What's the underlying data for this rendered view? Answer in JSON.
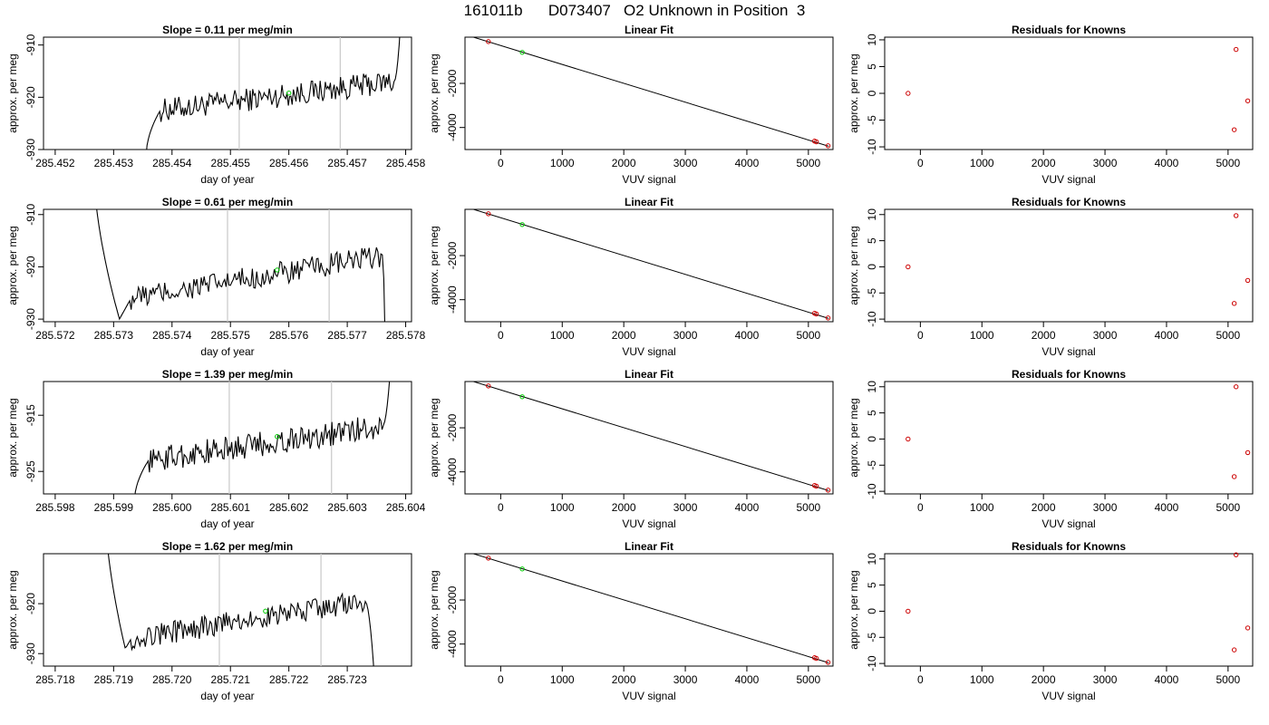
{
  "title": "161011b      D073407   O2 Unknown in Position  3",
  "colors": {
    "line": "#000000",
    "known_point": "#cc0000",
    "unknown_point": "#00cc00",
    "vline": "#cccccc",
    "frame": "#000000"
  },
  "chart_data": [
    {
      "type": "line",
      "title": "Slope =  0.11  per meg/min",
      "xlabel": "day of year",
      "ylabel": "approx. per meg",
      "xlim": [
        285.4518,
        285.4581
      ],
      "ylim": [
        -930,
        -908.5
      ],
      "xticks": [
        285.452,
        285.453,
        285.454,
        285.455,
        285.456,
        285.457,
        285.458
      ],
      "xtick_labels": [
        "285.452",
        "285.453",
        "285.454",
        "285.455",
        "285.456",
        "285.457",
        "285.458"
      ],
      "yticks": [
        -930,
        -920,
        -910
      ],
      "ytick_labels": [
        "-930",
        "-920",
        "-910"
      ],
      "vlines": [
        285.45515,
        285.45688
      ],
      "series_x_range": [
        285.45355,
        285.45791
      ],
      "series_start": -932,
      "series_end": -906,
      "plateau_range": [
        285.4538,
        285.4578
      ],
      "plateau_from": -922.5,
      "plateau_to": -917,
      "unknown_point": {
        "x": 285.456,
        "y": -919.2
      }
    },
    {
      "type": "scatter",
      "title": "Linear Fit",
      "xlabel": "VUV signal",
      "ylabel": "approx. per meg",
      "xlim": [
        -580,
        5400
      ],
      "ylim": [
        -5000,
        100
      ],
      "xticks": [
        0,
        1000,
        2000,
        3000,
        4000,
        5000
      ],
      "xtick_labels": [
        "0",
        "1000",
        "2000",
        "3000",
        "4000",
        "5000"
      ],
      "yticks": [
        -4000,
        -2000
      ],
      "ytick_labels": [
        "-4000",
        "-2000"
      ],
      "fit_line": {
        "x": [
          -560,
          5330
        ],
        "y": [
          200,
          -4850
        ]
      },
      "known_points": [
        {
          "x": -200,
          "y": -100
        },
        {
          "x": 5100,
          "y": -4620
        },
        {
          "x": 5130,
          "y": -4650
        },
        {
          "x": 5320,
          "y": -4830
        }
      ],
      "unknown_points": [
        {
          "x": 350,
          "y": -590
        }
      ]
    },
    {
      "type": "scatter",
      "title": "Residuals for Knowns",
      "xlabel": "VUV signal",
      "ylabel": "approx. per meg",
      "xlim": [
        -580,
        5400
      ],
      "ylim": [
        -10.5,
        10.5
      ],
      "xticks": [
        0,
        1000,
        2000,
        3000,
        4000,
        5000
      ],
      "xtick_labels": [
        "0",
        "1000",
        "2000",
        "3000",
        "4000",
        "5000"
      ],
      "yticks": [
        -10,
        -5,
        0,
        5,
        10
      ],
      "ytick_labels": [
        "-10",
        "-5",
        "0",
        "5",
        "10"
      ],
      "known_points": [
        {
          "x": -200,
          "y": 0
        },
        {
          "x": 5130,
          "y": 8.2
        },
        {
          "x": 5100,
          "y": -6.8
        },
        {
          "x": 5320,
          "y": -1.4
        }
      ]
    },
    {
      "type": "line",
      "title": "Slope =  0.61  per meg/min",
      "xlabel": "day of year",
      "ylabel": "approx. per meg",
      "xlim": [
        285.5718,
        285.5781
      ],
      "ylim": [
        -930.5,
        -909
      ],
      "xticks": [
        285.572,
        285.573,
        285.574,
        285.575,
        285.576,
        285.577,
        285.578
      ],
      "xtick_labels": [
        "285.572",
        "285.573",
        "285.574",
        "285.575",
        "285.576",
        "285.577",
        "285.578"
      ],
      "yticks": [
        -930,
        -920,
        -910
      ],
      "ytick_labels": [
        "-930",
        "-920",
        "-910"
      ],
      "vlines": [
        285.57495,
        285.57669
      ],
      "series_x_range": [
        285.57265,
        285.57765
      ],
      "series_start": -900,
      "series_end": -935,
      "valley_x": 285.5731,
      "valley_y": -930,
      "plateau_range": [
        285.5733,
        285.5776
      ],
      "plateau_from": -926,
      "plateau_to": -918,
      "unknown_point": {
        "x": 285.5758,
        "y": -920.6
      }
    },
    {
      "type": "scatter",
      "title": "Linear Fit",
      "xlabel": "VUV signal",
      "ylabel": "approx. per meg",
      "xlim": [
        -580,
        5400
      ],
      "ylim": [
        -5000,
        100
      ],
      "xticks": [
        0,
        1000,
        2000,
        3000,
        4000,
        5000
      ],
      "xtick_labels": [
        "0",
        "1000",
        "2000",
        "3000",
        "4000",
        "5000"
      ],
      "yticks": [
        -4000,
        -2000
      ],
      "ytick_labels": [
        "-4000",
        "-2000"
      ],
      "fit_line": {
        "x": [
          -560,
          5330
        ],
        "y": [
          200,
          -4850
        ]
      },
      "known_points": [
        {
          "x": -200,
          "y": -100
        },
        {
          "x": 5100,
          "y": -4620
        },
        {
          "x": 5130,
          "y": -4650
        },
        {
          "x": 5320,
          "y": -4830
        }
      ],
      "unknown_points": [
        {
          "x": 350,
          "y": -590
        }
      ]
    },
    {
      "type": "scatter",
      "title": "Residuals for Knowns",
      "xlabel": "VUV signal",
      "ylabel": "approx. per meg",
      "xlim": [
        -580,
        5400
      ],
      "ylim": [
        -10.5,
        11
      ],
      "xticks": [
        0,
        1000,
        2000,
        3000,
        4000,
        5000
      ],
      "xtick_labels": [
        "0",
        "1000",
        "2000",
        "3000",
        "4000",
        "5000"
      ],
      "yticks": [
        -10,
        -5,
        0,
        5,
        10
      ],
      "ytick_labels": [
        "-10",
        "-5",
        "0",
        "5",
        "10"
      ],
      "known_points": [
        {
          "x": -200,
          "y": 0
        },
        {
          "x": 5130,
          "y": 9.8
        },
        {
          "x": 5100,
          "y": -7.0
        },
        {
          "x": 5320,
          "y": -2.6
        }
      ]
    },
    {
      "type": "line",
      "title": "Slope =  1.39  per meg/min",
      "xlabel": "day of year",
      "ylabel": "approx. per meg",
      "xlim": [
        285.5978,
        285.6041
      ],
      "ylim": [
        -929,
        -909
      ],
      "xticks": [
        285.598,
        285.599,
        285.6,
        285.601,
        285.602,
        285.603,
        285.604
      ],
      "xtick_labels": [
        "285.598",
        "285.599",
        "285.600",
        "285.601",
        "285.602",
        "285.603",
        "285.604"
      ],
      "yticks": [
        -925,
        -915
      ],
      "ytick_labels": [
        "-925",
        "-915"
      ],
      "vlines": [
        285.60098,
        285.60273
      ],
      "series_x_range": [
        285.59935,
        285.60375
      ],
      "series_start": -931,
      "series_end": -905,
      "plateau_range": [
        285.5996,
        285.6036
      ],
      "plateau_from": -923,
      "plateau_to": -917,
      "unknown_point": {
        "x": 285.6018,
        "y": -918.8
      }
    },
    {
      "type": "scatter",
      "title": "Linear Fit",
      "xlabel": "VUV signal",
      "ylabel": "approx. per meg",
      "xlim": [
        -580,
        5400
      ],
      "ylim": [
        -5000,
        100
      ],
      "xticks": [
        0,
        1000,
        2000,
        3000,
        4000,
        5000
      ],
      "xtick_labels": [
        "0",
        "1000",
        "2000",
        "3000",
        "4000",
        "5000"
      ],
      "yticks": [
        -4000,
        -2000
      ],
      "ytick_labels": [
        "-4000",
        "-2000"
      ],
      "fit_line": {
        "x": [
          -560,
          5330
        ],
        "y": [
          200,
          -4850
        ]
      },
      "known_points": [
        {
          "x": -200,
          "y": -100
        },
        {
          "x": 5100,
          "y": -4620
        },
        {
          "x": 5130,
          "y": -4650
        },
        {
          "x": 5320,
          "y": -4830
        }
      ],
      "unknown_points": [
        {
          "x": 350,
          "y": -590
        }
      ]
    },
    {
      "type": "scatter",
      "title": "Residuals for Knowns",
      "xlabel": "VUV signal",
      "ylabel": "approx. per meg",
      "xlim": [
        -580,
        5400
      ],
      "ylim": [
        -10.5,
        11
      ],
      "xticks": [
        0,
        1000,
        2000,
        3000,
        4000,
        5000
      ],
      "xtick_labels": [
        "0",
        "1000",
        "2000",
        "3000",
        "4000",
        "5000"
      ],
      "yticks": [
        -10,
        -5,
        0,
        5,
        10
      ],
      "ytick_labels": [
        "-10",
        "-5",
        "0",
        "5",
        "10"
      ],
      "known_points": [
        {
          "x": -200,
          "y": 0
        },
        {
          "x": 5130,
          "y": 10.0
        },
        {
          "x": 5100,
          "y": -7.2
        },
        {
          "x": 5320,
          "y": -2.6
        }
      ]
    },
    {
      "type": "line",
      "title": "Slope =  1.62  per meg/min",
      "xlabel": "day of year",
      "ylabel": "approx. per meg",
      "xlim": [
        285.7178,
        285.7241
      ],
      "ylim": [
        -932.5,
        -910
      ],
      "xticks": [
        285.718,
        285.719,
        285.72,
        285.721,
        285.722,
        285.723
      ],
      "xtick_labels": [
        "285.718",
        "285.719",
        "285.720",
        "285.721",
        "285.722",
        "285.723"
      ],
      "yticks": [
        -930,
        -920
      ],
      "ytick_labels": [
        "-930",
        "-920"
      ],
      "vlines": [
        285.72081,
        285.72255
      ],
      "series_x_range": [
        285.71885,
        285.72347
      ],
      "series_start": -900,
      "series_end": -936,
      "valley_x": 285.7192,
      "valley_y": -929,
      "plateau_range": [
        285.7193,
        285.7233
      ],
      "plateau_from": -927,
      "plateau_to": -919.5,
      "unknown_point": {
        "x": 285.7216,
        "y": -921.5
      }
    },
    {
      "type": "scatter",
      "title": "Linear Fit",
      "xlabel": "VUV signal",
      "ylabel": "approx. per meg",
      "xlim": [
        -580,
        5400
      ],
      "ylim": [
        -5000,
        100
      ],
      "xticks": [
        0,
        1000,
        2000,
        3000,
        4000,
        5000
      ],
      "xtick_labels": [
        "0",
        "1000",
        "2000",
        "3000",
        "4000",
        "5000"
      ],
      "yticks": [
        -4000,
        -2000
      ],
      "ytick_labels": [
        "-4000",
        "-2000"
      ],
      "fit_line": {
        "x": [
          -560,
          5330
        ],
        "y": [
          200,
          -4850
        ]
      },
      "known_points": [
        {
          "x": -200,
          "y": -100
        },
        {
          "x": 5100,
          "y": -4620
        },
        {
          "x": 5130,
          "y": -4650
        },
        {
          "x": 5320,
          "y": -4830
        }
      ],
      "unknown_points": [
        {
          "x": 350,
          "y": -590
        }
      ]
    },
    {
      "type": "scatter",
      "title": "Residuals for Knowns",
      "xlabel": "VUV signal",
      "ylabel": "approx. per meg",
      "xlim": [
        -580,
        5400
      ],
      "ylim": [
        -10.5,
        11
      ],
      "xticks": [
        0,
        1000,
        2000,
        3000,
        4000,
        5000
      ],
      "xtick_labels": [
        "0",
        "1000",
        "2000",
        "3000",
        "4000",
        "5000"
      ],
      "yticks": [
        -10,
        -5,
        0,
        5,
        10
      ],
      "ytick_labels": [
        "-10",
        "-5",
        "0",
        "5",
        "10"
      ],
      "known_points": [
        {
          "x": -200,
          "y": 0
        },
        {
          "x": 5130,
          "y": 10.8
        },
        {
          "x": 5100,
          "y": -7.4
        },
        {
          "x": 5320,
          "y": -3.2
        }
      ]
    }
  ]
}
